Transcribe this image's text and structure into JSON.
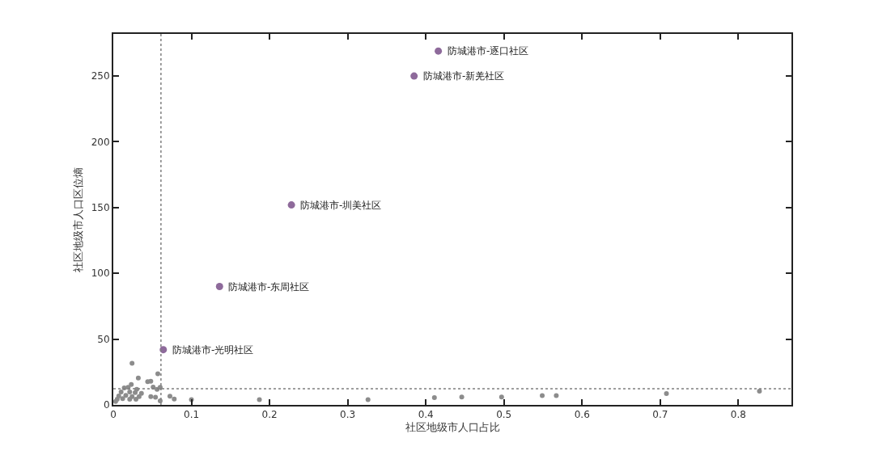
{
  "chart_data": {
    "type": "scatter",
    "xlabel": "社区地级市人口占比",
    "ylabel": "社区地级市人口区位熵",
    "xlim": [
      0,
      0.868
    ],
    "xticks": [
      0,
      0.1,
      0.2,
      0.3,
      0.4,
      0.5,
      0.6,
      0.7,
      0.8
    ],
    "ylim": [
      0,
      282
    ],
    "yticks": [
      0,
      50,
      100,
      150,
      200,
      250
    ],
    "marker": "circle",
    "series": [
      {
        "color": "#8c8c8c",
        "x": [
          0.1,
          0.187,
          0.326,
          0.411,
          0.446,
          0.497,
          0.549,
          0.567,
          0.708,
          0.827,
          0.024,
          0.032,
          0.057,
          0.044,
          0.048,
          0.023,
          0.051,
          0.056,
          0.06,
          0.0725,
          0.078,
          0.048,
          0.054,
          0.06,
          0.014,
          0.019,
          0.03,
          0.01,
          0.021,
          0.028,
          0.036,
          0.007,
          0.016,
          0.024,
          0.033,
          0.005,
          0.012,
          0.021,
          0.029,
          0.003
        ],
        "values": [
          4,
          4,
          4,
          5.5,
          6,
          6,
          7,
          7,
          8.6,
          10.4,
          31.7,
          20.5,
          23.7,
          17.6,
          18,
          15.5,
          13.5,
          11.9,
          13.3,
          6.6,
          4.5,
          6.3,
          5.9,
          3.1,
          12.9,
          13.3,
          11.9,
          9.8,
          9.8,
          9.4,
          8.8,
          6.8,
          7.2,
          6.3,
          6.3,
          4.3,
          4.7,
          4.3,
          4.3,
          2.6
        ]
      },
      {
        "color": "#8e6a9b",
        "x": [
          0.416,
          0.385,
          0.228,
          0.136,
          0.064
        ],
        "values": [
          269,
          250,
          152,
          90,
          42
        ]
      }
    ],
    "ref_lines": [
      {
        "axis": "x",
        "value": 0.061,
        "color": "#7f7f7f",
        "line_style": "dotted"
      },
      {
        "axis": "y",
        "value": 12.3,
        "color": "#7f7f7f",
        "line_style": "dotted"
      }
    ],
    "annotations": [
      {
        "text": "防城港市-逐口社区",
        "x": 0.416,
        "y": 269
      },
      {
        "text": "防城港市-新羌社区",
        "x": 0.385,
        "y": 250
      },
      {
        "text": "防城港市-圳美社区",
        "x": 0.228,
        "y": 152
      },
      {
        "text": "防城港市-东周社区",
        "x": 0.136,
        "y": 90
      },
      {
        "text": "防城港市-光明社区",
        "x": 0.064,
        "y": 42
      }
    ]
  }
}
